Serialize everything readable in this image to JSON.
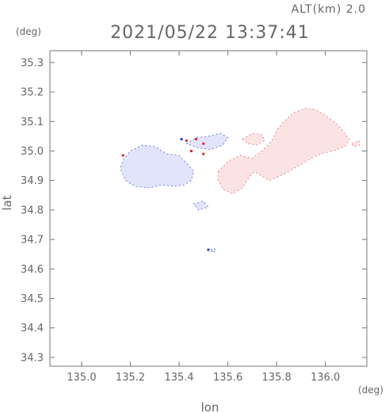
{
  "chart_data": {
    "type": "heatmap",
    "title": "2021/05/22 13:37:41",
    "altitude_label": "ALT(km) 2.0",
    "xlabel": "lon",
    "ylabel": "lat",
    "x_unit": "(deg)",
    "y_unit": "(deg)",
    "xlim": [
      134.87,
      136.17
    ],
    "ylim": [
      34.27,
      35.34
    ],
    "x_ticks": [
      135.0,
      135.2,
      135.4,
      135.6,
      135.8,
      136.0
    ],
    "x_tick_labels": [
      "135.0",
      "135.2",
      "135.4",
      "135.6",
      "135.8",
      "136.0"
    ],
    "y_ticks": [
      34.3,
      34.4,
      34.5,
      34.6,
      34.7,
      34.8,
      34.9,
      35.0,
      35.1,
      35.2,
      35.3
    ],
    "y_tick_labels": [
      "34.3",
      "34.4",
      "34.5",
      "34.6",
      "34.7",
      "34.8",
      "34.9",
      "35.0",
      "35.1",
      "35.2",
      "35.3"
    ],
    "grid": false,
    "colors": {
      "negative_fill": "#e2e4fb",
      "negative_edge": "#6f78e6",
      "positive_fill": "#fbe3e3",
      "positive_edge": "#e58a8a",
      "strong_negative": "#3344cc",
      "strong_positive": "#cc3333",
      "axis": "#777777"
    },
    "regions": [
      {
        "sign": "negative",
        "points": [
          [
            135.17,
            34.97
          ],
          [
            135.2,
            35.0
          ],
          [
            135.25,
            35.02
          ],
          [
            135.3,
            35.015
          ],
          [
            135.35,
            34.99
          ],
          [
            135.4,
            34.985
          ],
          [
            135.43,
            34.96
          ],
          [
            135.46,
            34.93
          ],
          [
            135.45,
            34.9
          ],
          [
            135.42,
            34.885
          ],
          [
            135.38,
            34.88
          ],
          [
            135.33,
            34.885
          ],
          [
            135.28,
            34.875
          ],
          [
            135.22,
            34.88
          ],
          [
            135.18,
            34.9
          ],
          [
            135.16,
            34.94
          ]
        ]
      },
      {
        "sign": "negative",
        "points": [
          [
            135.43,
            35.025
          ],
          [
            135.47,
            35.045
          ],
          [
            135.52,
            35.05
          ],
          [
            135.57,
            35.06
          ],
          [
            135.6,
            35.045
          ],
          [
            135.58,
            35.02
          ],
          [
            135.53,
            35.005
          ],
          [
            135.48,
            35.01
          ]
        ]
      },
      {
        "sign": "negative",
        "points": [
          [
            135.46,
            34.82
          ],
          [
            135.5,
            34.83
          ],
          [
            135.52,
            34.81
          ],
          [
            135.48,
            34.8
          ]
        ]
      },
      {
        "sign": "negative",
        "points": [
          [
            135.53,
            34.665
          ],
          [
            135.545,
            34.67
          ],
          [
            135.55,
            34.66
          ],
          [
            135.535,
            34.655
          ]
        ]
      },
      {
        "sign": "positive",
        "points": [
          [
            135.56,
            34.93
          ],
          [
            135.6,
            34.965
          ],
          [
            135.65,
            34.985
          ],
          [
            135.7,
            34.975
          ],
          [
            135.74,
            35.0
          ],
          [
            135.78,
            35.035
          ],
          [
            135.8,
            35.07
          ],
          [
            135.83,
            35.1
          ],
          [
            135.87,
            35.13
          ],
          [
            135.92,
            35.145
          ],
          [
            135.96,
            35.14
          ],
          [
            136.0,
            35.12
          ],
          [
            136.05,
            35.09
          ],
          [
            136.08,
            35.06
          ],
          [
            136.1,
            35.04
          ],
          [
            136.08,
            35.015
          ],
          [
            136.03,
            35.0
          ],
          [
            135.98,
            34.99
          ],
          [
            135.93,
            34.97
          ],
          [
            135.89,
            34.95
          ],
          [
            135.85,
            34.93
          ],
          [
            135.8,
            34.91
          ],
          [
            135.77,
            34.9
          ],
          [
            135.74,
            34.915
          ],
          [
            135.71,
            34.93
          ],
          [
            135.69,
            34.915
          ],
          [
            135.66,
            34.875
          ],
          [
            135.62,
            34.855
          ],
          [
            135.58,
            34.87
          ],
          [
            135.56,
            34.9
          ]
        ]
      },
      {
        "sign": "positive",
        "points": [
          [
            135.66,
            35.04
          ],
          [
            135.7,
            35.06
          ],
          [
            135.74,
            35.055
          ],
          [
            135.75,
            35.035
          ],
          [
            135.72,
            35.02
          ],
          [
            135.68,
            35.025
          ]
        ]
      },
      {
        "sign": "positive",
        "points": [
          [
            136.11,
            35.025
          ],
          [
            136.14,
            35.035
          ],
          [
            136.14,
            35.02
          ],
          [
            136.115,
            35.015
          ]
        ]
      }
    ],
    "spots": [
      {
        "sign": "strong_positive",
        "x": 135.17,
        "y": 34.985
      },
      {
        "sign": "strong_positive",
        "x": 135.43,
        "y": 35.035
      },
      {
        "sign": "strong_positive",
        "x": 135.47,
        "y": 35.04
      },
      {
        "sign": "strong_positive",
        "x": 135.45,
        "y": 35.0
      },
      {
        "sign": "strong_positive",
        "x": 135.5,
        "y": 35.025
      },
      {
        "sign": "strong_positive",
        "x": 135.5,
        "y": 34.99
      },
      {
        "sign": "strong_negative",
        "x": 135.41,
        "y": 35.04
      },
      {
        "sign": "strong_negative",
        "x": 135.52,
        "y": 34.665
      }
    ]
  }
}
